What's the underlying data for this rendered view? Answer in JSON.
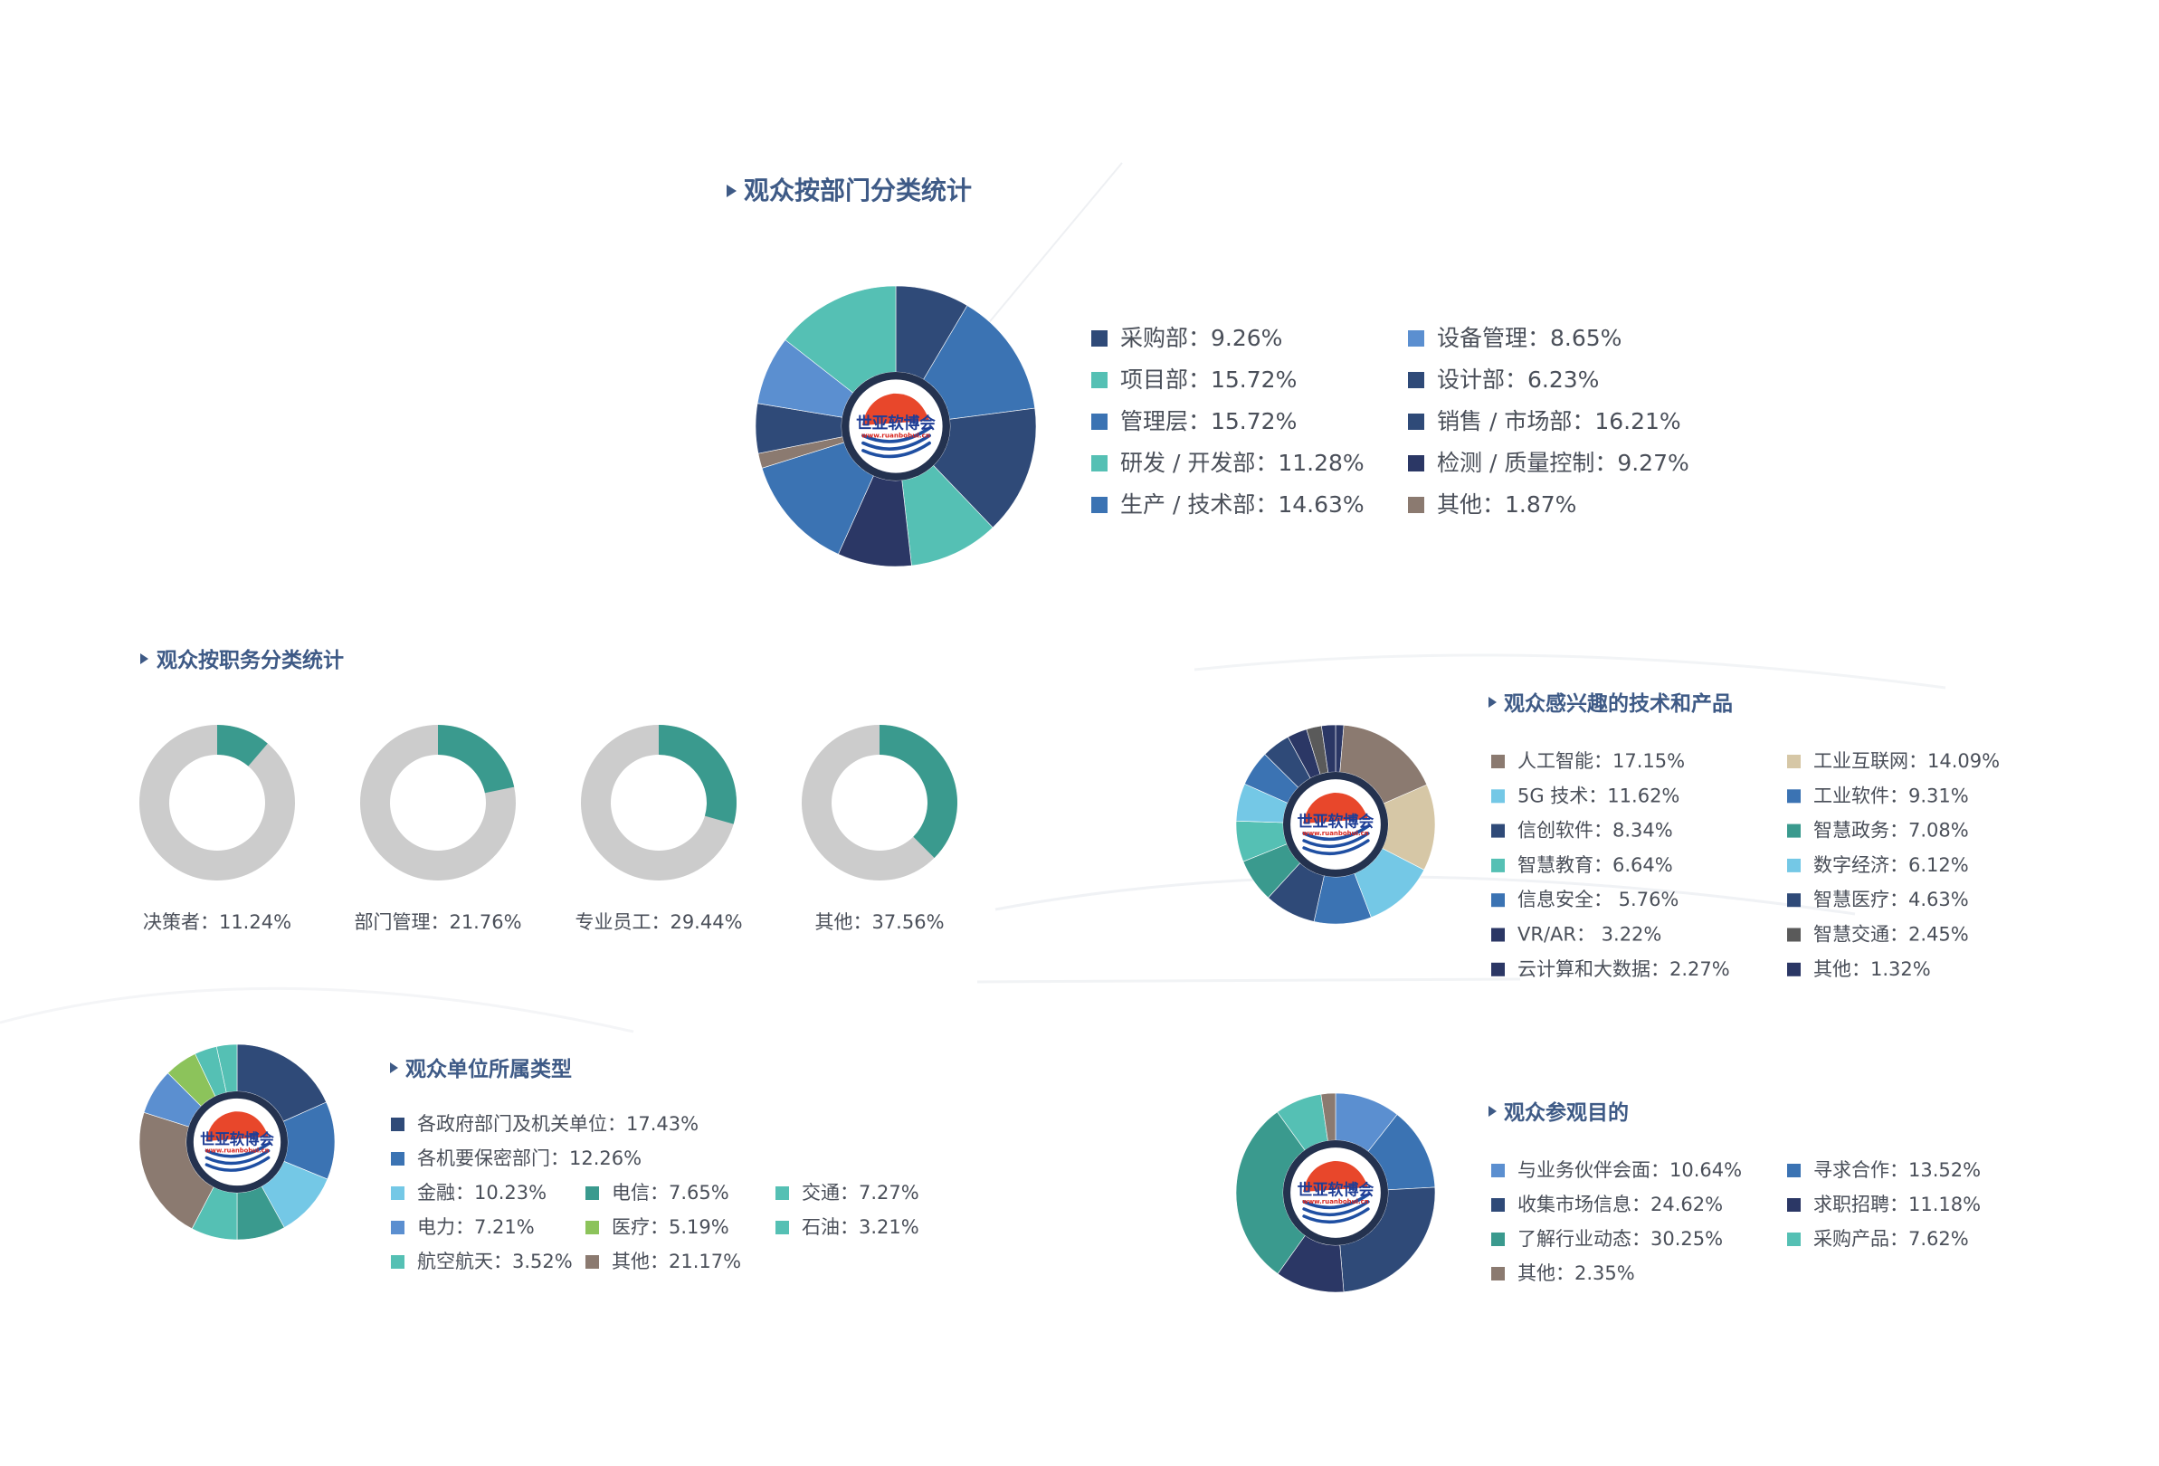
{
  "brand": {
    "name": "世亚软博会",
    "url": "www.ruanbohui.cn"
  },
  "colors": {
    "navy": "#2f4a78",
    "steel": "#3b73b3",
    "teal": "#55c0b4",
    "darkteal": "#3a9a8e",
    "lightblue": "#5b8fd0",
    "deepnavy": "#2b3765",
    "brown": "#8b7a70",
    "gray": "#cccccc",
    "sky": "#74c8e6",
    "beige": "#d6c7a6",
    "green": "#8cc35b",
    "darkgray": "#5a5a5a",
    "title": "#3e5a86"
  },
  "chart_data": [
    {
      "id": "department",
      "type": "pie",
      "title": "观众按部门分类统计",
      "start_angle": 0,
      "slices": [
        {
          "label": "采购部",
          "value": 9.26,
          "text": "采购部：9.26%",
          "color": "navy"
        },
        {
          "label": "项目部",
          "value": 15.72,
          "text": "项目部：15.72%",
          "color": "teal"
        },
        {
          "label": "管理层",
          "value": 15.72,
          "text": "管理层：15.72%",
          "color": "steel"
        },
        {
          "label": "研发 / 开发部",
          "value": 11.28,
          "text": "研发 / 开发部：11.28%",
          "color": "teal"
        },
        {
          "label": "生产 / 技术部",
          "value": 14.63,
          "text": "生产 / 技术部：14.63%",
          "color": "steel"
        },
        {
          "label": "设备管理",
          "value": 8.65,
          "text": "设备管理：8.65%",
          "color": "lightblue"
        },
        {
          "label": "设计部",
          "value": 6.23,
          "text": "设计部：6.23%",
          "color": "navy"
        },
        {
          "label": "销售 / 市场部",
          "value": 16.21,
          "text": "销售 / 市场部：16.21%",
          "color": "navy"
        },
        {
          "label": "检测 / 质量控制",
          "value": 9.27,
          "text": "检测 / 质量控制：9.27%",
          "color": "deepnavy"
        },
        {
          "label": "其他",
          "value": 1.87,
          "text": "其他：1.87%",
          "color": "brown"
        }
      ],
      "draw_order": [
        "采购部",
        "管理层",
        "销售 / 市场部",
        "研发 / 开发部",
        "检测 / 质量控制",
        "生产 / 技术部",
        "其他",
        "设计部",
        "设备管理",
        "项目部"
      ],
      "legend_columns": 2
    },
    {
      "id": "position",
      "type": "pie",
      "title": "观众按职务分类统计",
      "small_multiples": [
        {
          "label": "决策者",
          "value": 11.24,
          "text": "决策者：11.24%"
        },
        {
          "label": "部门管理",
          "value": 21.76,
          "text": "部门管理：21.76%"
        },
        {
          "label": "专业员工",
          "value": 29.44,
          "text": "专业员工：29.44%"
        },
        {
          "label": "其他",
          "value": 37.56,
          "text": "其他：37.56%"
        }
      ],
      "fill_color": "darkteal",
      "rest_color": "gray"
    },
    {
      "id": "interest",
      "type": "pie",
      "title": "观众感兴趣的技术和产品",
      "slices": [
        {
          "label": "人工智能",
          "value": 17.15,
          "text": "人工智能：17.15%",
          "color": "brown"
        },
        {
          "label": "5G 技术",
          "value": 11.62,
          "text": "5G 技术：11.62%",
          "color": "sky"
        },
        {
          "label": "信创软件",
          "value": 8.34,
          "text": "信创软件：8.34%",
          "color": "navy"
        },
        {
          "label": "智慧教育",
          "value": 6.64,
          "text": "智慧教育：6.64%",
          "color": "teal"
        },
        {
          "label": "信息安全",
          "value": 5.76,
          "text": "信息安全： 5.76%",
          "color": "steel"
        },
        {
          "label": "VR/AR",
          "value": 3.22,
          "text": "VR/AR： 3.22%",
          "color": "deepnavy"
        },
        {
          "label": "云计算和大数据",
          "value": 2.27,
          "text": "云计算和大数据：2.27%",
          "color": "deepnavy"
        },
        {
          "label": "工业互联网",
          "value": 14.09,
          "text": "工业互联网：14.09%",
          "color": "beige"
        },
        {
          "label": "工业软件",
          "value": 9.31,
          "text": "工业软件：9.31%",
          "color": "steel"
        },
        {
          "label": "智慧政务",
          "value": 7.08,
          "text": "智慧政务：7.08%",
          "color": "darkteal"
        },
        {
          "label": "数字经济",
          "value": 6.12,
          "text": "数字经济：6.12%",
          "color": "sky"
        },
        {
          "label": "智慧医疗",
          "value": 4.63,
          "text": "智慧医疗：4.63%",
          "color": "navy"
        },
        {
          "label": "智慧交通",
          "value": 2.45,
          "text": "智慧交通：2.45%",
          "color": "darkgray"
        },
        {
          "label": "其他",
          "value": 1.32,
          "text": "其他：1.32%",
          "color": "deepnavy"
        }
      ],
      "legend_columns": 2
    },
    {
      "id": "unit",
      "type": "pie",
      "title": "观众单位所属类型",
      "slices": [
        {
          "label": "各政府部门及机关单位",
          "value": 17.43,
          "text": "各政府部门及机关单位：17.43%",
          "color": "navy"
        },
        {
          "label": "各机要保密部门",
          "value": 12.26,
          "text": "各机要保密部门：12.26%",
          "color": "steel"
        },
        {
          "label": "金融",
          "value": 10.23,
          "text": "金融：10.23%",
          "color": "sky"
        },
        {
          "label": "电信",
          "value": 7.65,
          "text": "电信：7.65%",
          "color": "darkteal"
        },
        {
          "label": "交通",
          "value": 7.27,
          "text": "交通：7.27%",
          "color": "teal"
        },
        {
          "label": "电力",
          "value": 7.21,
          "text": "电力：7.21%",
          "color": "lightblue"
        },
        {
          "label": "医疗",
          "value": 5.19,
          "text": "医疗：5.19%",
          "color": "green"
        },
        {
          "label": "石油",
          "value": 3.21,
          "text": "石油：3.21%",
          "color": "teal"
        },
        {
          "label": "航空航天",
          "value": 3.52,
          "text": "航空航天：3.52%",
          "color": "teal"
        },
        {
          "label": "其他",
          "value": 21.17,
          "text": "其他：21.17%",
          "color": "brown"
        }
      ]
    },
    {
      "id": "purpose",
      "type": "pie",
      "title": "观众参观目的",
      "slices": [
        {
          "label": "与业务伙伴会面",
          "value": 10.64,
          "text": "与业务伙伴会面：10.64%",
          "color": "lightblue"
        },
        {
          "label": "收集市场信息",
          "value": 24.62,
          "text": "收集市场信息：24.62%",
          "color": "navy"
        },
        {
          "label": "了解行业动态",
          "value": 30.25,
          "text": "了解行业动态：30.25%",
          "color": "darkteal"
        },
        {
          "label": "其他",
          "value": 2.35,
          "text": "其他：2.35%",
          "color": "brown"
        },
        {
          "label": "寻求合作",
          "value": 13.52,
          "text": "寻求合作：13.52%",
          "color": "steel"
        },
        {
          "label": "求职招聘",
          "value": 11.18,
          "text": "求职招聘：11.18%",
          "color": "deepnavy"
        },
        {
          "label": "采购产品",
          "value": 7.62,
          "text": "采购产品：7.62%",
          "color": "teal"
        }
      ],
      "draw_order": [
        "与业务伙伴会面",
        "寻求合作",
        "收集市场信息",
        "求职招聘",
        "了解行业动态",
        "采购产品",
        "其他"
      ],
      "legend_columns": 2
    }
  ]
}
